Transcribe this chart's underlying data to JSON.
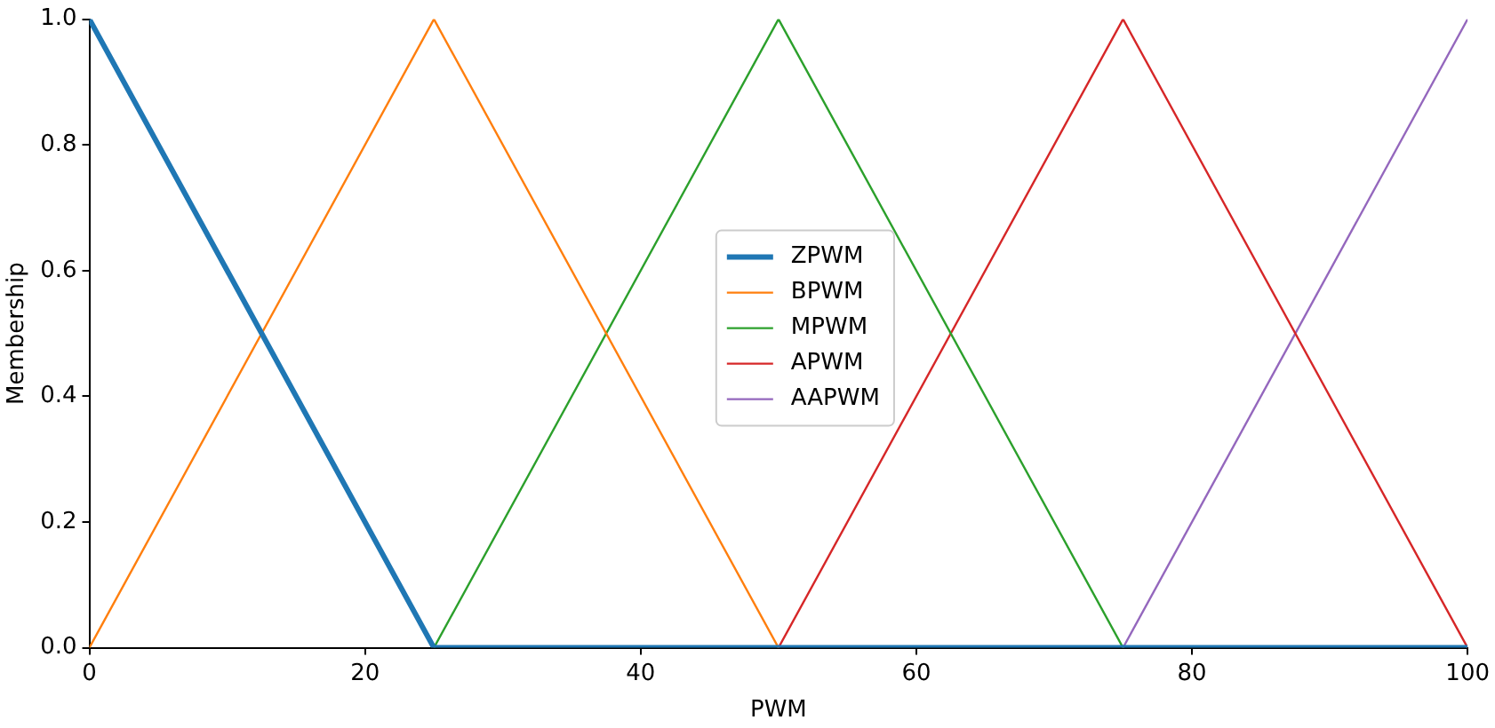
{
  "chart_data": {
    "type": "line",
    "xlabel": "PWM",
    "ylabel": "Membership",
    "xlim": [
      0,
      100
    ],
    "xticks": [
      0,
      20,
      40,
      60,
      80,
      100
    ],
    "ylim": [
      0,
      1
    ],
    "yticks": [
      {
        "value": 0,
        "label": "0.0"
      },
      {
        "value": 0.2,
        "label": "0.2"
      },
      {
        "value": 0.4,
        "label": "0.4"
      },
      {
        "value": 0.6,
        "label": "0.6"
      },
      {
        "value": 0.8,
        "label": "0.8"
      },
      {
        "value": 1,
        "label": "1.0"
      }
    ],
    "grid": false,
    "legend": "center",
    "marker": "none",
    "line_style": "solid",
    "series": [
      {
        "name": "ZPWM",
        "color": "#1f77b4",
        "x": [
          0,
          25,
          100
        ],
        "values": [
          1,
          0,
          0
        ]
      },
      {
        "name": "BPWM",
        "color": "#ff7f0e",
        "x": [
          0,
          25,
          50
        ],
        "values": [
          0,
          1,
          0
        ]
      },
      {
        "name": "MPWM",
        "color": "#2ca02c",
        "x": [
          25,
          50,
          75
        ],
        "values": [
          0,
          1,
          0
        ]
      },
      {
        "name": "APWM",
        "color": "#d62728",
        "x": [
          50,
          75,
          100
        ],
        "values": [
          0,
          1,
          0
        ]
      },
      {
        "name": "AAPWM",
        "color": "#9467bd",
        "x": [
          75,
          100
        ],
        "values": [
          0,
          1
        ]
      }
    ]
  }
}
